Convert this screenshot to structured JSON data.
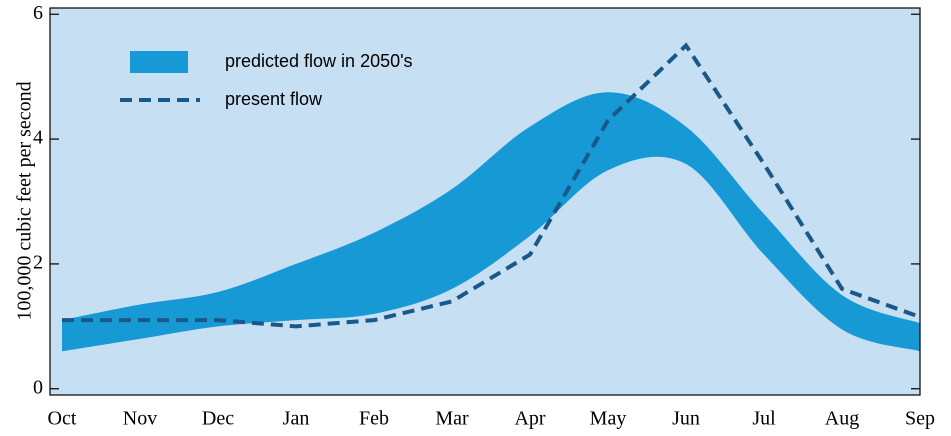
{
  "chart_data": {
    "type": "band-line",
    "y_label": "100,000 cubic feet per second",
    "categories": [
      "Oct",
      "Nov",
      "Dec",
      "Jan",
      "Feb",
      "Mar",
      "Apr",
      "May",
      "Jun",
      "Jul",
      "Aug",
      "Sep"
    ],
    "series": [
      {
        "name": "predicted flow in 2050's",
        "color": "#1799d6",
        "upper": [
          1.1,
          1.35,
          1.55,
          2.0,
          2.5,
          3.2,
          4.2,
          4.75,
          4.2,
          2.8,
          1.5,
          1.05
        ],
        "lower": [
          0.6,
          0.8,
          1.0,
          1.1,
          1.2,
          1.6,
          2.45,
          3.5,
          3.6,
          2.15,
          0.95,
          0.6
        ]
      },
      {
        "name": "present flow",
        "color": "#18598a",
        "dashed": true,
        "values": [
          1.1,
          1.1,
          1.1,
          1.0,
          1.1,
          1.4,
          2.15,
          4.3,
          5.5,
          3.6,
          1.6,
          1.15
        ]
      }
    ],
    "ylim": [
      -0.1,
      6.1
    ],
    "yticks": [
      0,
      2,
      4,
      6
    ],
    "legend": "upper left",
    "background": "#c6dff2"
  }
}
